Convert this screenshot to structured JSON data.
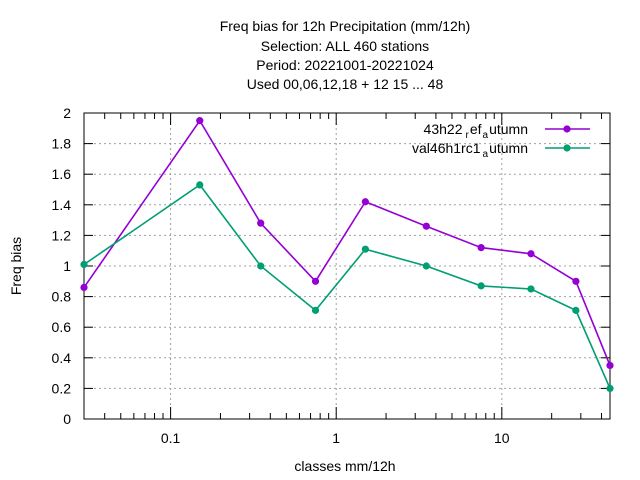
{
  "chart_data": {
    "type": "line",
    "title_lines": [
      "Freq bias  for 12h Precipitation (mm/12h)",
      "Selection: ALL    460 stations",
      "Period: 20221001-20221024",
      "Used  00,06,12,18  + 12 15 ... 48"
    ],
    "xlabel": "classes mm/12h",
    "ylabel": "Freq bias",
    "x_scale": "log",
    "xlim": [
      0.03,
      45
    ],
    "ylim": [
      0,
      2
    ],
    "x_tick_labels": [
      "0.1",
      "1",
      "10"
    ],
    "y_tick_labels": [
      "0",
      "0.2",
      "0.4",
      "0.6",
      "0.8",
      "1",
      "1.2",
      "1.4",
      "1.6",
      "1.8",
      "2"
    ],
    "grid": true,
    "legend_position": "top-right",
    "x": [
      0.03,
      0.15,
      0.35,
      0.75,
      1.5,
      3.5,
      7.5,
      15,
      28,
      45
    ],
    "series": [
      {
        "name": "43h22_ref_autumn",
        "legend_text": "43h22",
        "legend_sub1": "r",
        "legend_mid": "ef",
        "legend_sub2": "a",
        "legend_tail": "utumn",
        "color": "#9400d3",
        "values": [
          0.86,
          1.95,
          1.28,
          0.9,
          1.42,
          1.26,
          1.12,
          1.08,
          0.9,
          0.35
        ]
      },
      {
        "name": "val46h1rc1_autumn",
        "legend_text": "val46h1rc1",
        "legend_sub": "a",
        "legend_tail": "utumn",
        "color": "#009e73",
        "values": [
          1.01,
          1.53,
          1.0,
          0.71,
          1.11,
          1.0,
          0.87,
          0.85,
          0.71,
          0.2
        ]
      }
    ]
  }
}
